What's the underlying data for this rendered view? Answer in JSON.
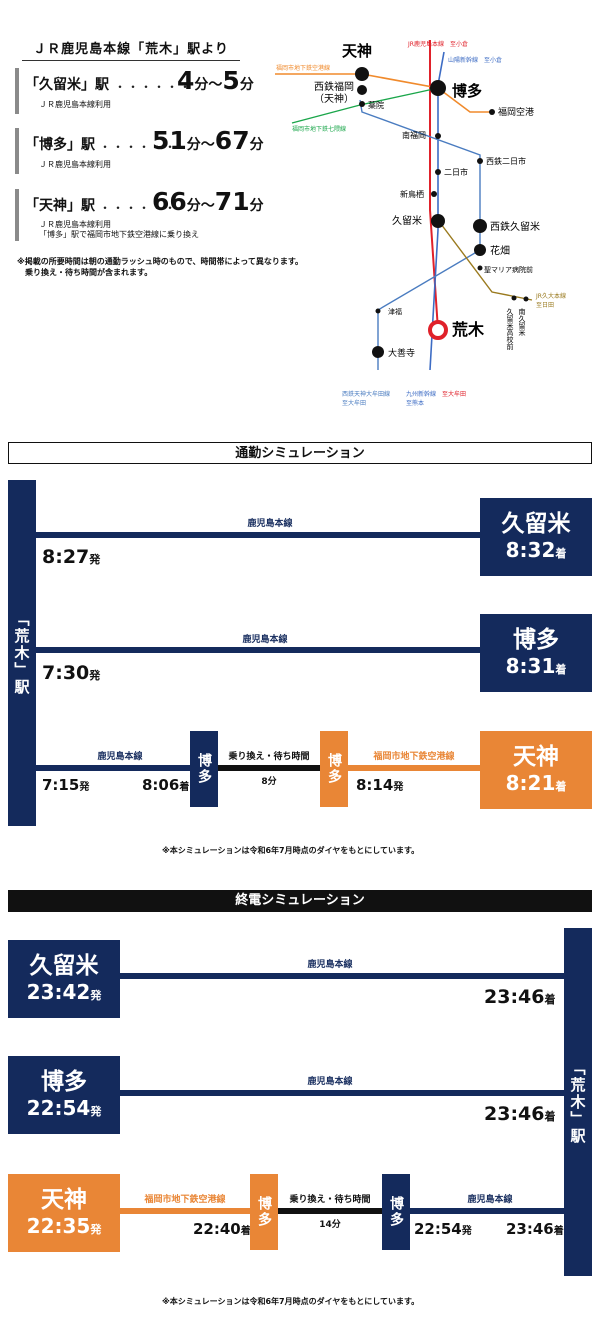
{
  "access": {
    "title": "ＪＲ鹿児島本線「荒木」駅より",
    "dots": "・・・・・・",
    "rows": [
      {
        "station": "「久留米」駅",
        "time_min": "4",
        "time_sep": "分〜",
        "time_max": "5",
        "unit": "分",
        "notes": [
          "ＪＲ鹿児島本線利用"
        ]
      },
      {
        "station": "「博多」駅",
        "time_min": "51",
        "time_sep": "分〜",
        "time_max": "67",
        "unit": "分",
        "notes": [
          "ＪＲ鹿児島本線利用"
        ]
      },
      {
        "station": "「天神」駅",
        "time_min": "66",
        "time_sep": "分〜",
        "time_max": "71",
        "unit": "分",
        "notes": [
          "ＪＲ鹿児島本線利用",
          "「博多」駅で福岡市地下鉄空港線に乗り換え"
        ]
      }
    ],
    "footnote": [
      "※掲載の所要時間は朝の通勤ラッシュ時のもので、時間帯によって異なります。",
      "乗り換え・待ち時間が含まれます。"
    ]
  },
  "map": {
    "tenjin": "天神",
    "hakata": "博多",
    "nishitetsu_fukuoka": "西鉄福岡",
    "nishitetsu_fukuoka_sub": "（天神）",
    "yakuin": "薬院",
    "fukuoka_airport": "福岡空港",
    "minamifukuoka": "南福岡",
    "futsukaichi": "二日市",
    "nishitetsu_futsukaichi": "西鉄二日市",
    "shintosu": "新鳥栖",
    "kurume": "久留米",
    "nishitetsu_kurume": "西鉄久留米",
    "hanabatake": "花畑",
    "seimaria": "聖マリア病院前",
    "araki": "荒木",
    "tsubuku": "津福",
    "daizenji": "大善寺",
    "kurume_koko": "久留米高校前",
    "minami_kurume": "南久留米",
    "lbl_kuko": "福岡市地下鉄空港線",
    "lbl_nanakuma": "福岡市地下鉄七隈線",
    "lbl_kagoshima_top": "JR鹿児島本線　至小倉",
    "lbl_sanyo": "山陽新幹線　至小倉",
    "lbl_nishitetsu_bottom": [
      "西鉄天神大牟田線",
      "至大牟田"
    ],
    "lbl_kyushu_shinkansen": [
      "九州新幹線",
      "至熊本"
    ],
    "lbl_omuta": "至大牟田",
    "lbl_kyudai": [
      "JR久大本線",
      "至日田"
    ]
  },
  "commute": {
    "heading": "通勤シミュレーション",
    "origin": "「荒木」駅",
    "routes": [
      {
        "line": "鹿児島本線",
        "depart": "8:27",
        "depart_suffix": "発",
        "dest": "久留米",
        "arrive": "8:32",
        "arrive_suffix": "着"
      },
      {
        "line": "鹿児島本線",
        "depart": "7:30",
        "depart_suffix": "発",
        "dest": "博多",
        "arrive": "8:31",
        "arrive_suffix": "着"
      },
      {
        "line": "鹿児島本線",
        "depart": "7:15",
        "depart_suffix": "発",
        "transfer_arrive": "8:06",
        "transfer_arrive_suffix": "着",
        "transfer_station": "博多",
        "transfer_label": "乗り換え・待ち時間",
        "transfer_time": "8分",
        "line2": "福岡市地下鉄空港線",
        "transfer_depart": "8:14",
        "transfer_depart_suffix": "発",
        "dest": "天神",
        "arrive": "8:21",
        "arrive_suffix": "着"
      }
    ],
    "note": "※本シミュレーションは令和6年7月時点のダイヤをもとにしています。"
  },
  "last": {
    "heading": "終電シミュレーション",
    "origin": "「荒木」駅",
    "routes": [
      {
        "line": "鹿児島本線",
        "from": "久留米",
        "depart": "23:42",
        "depart_suffix": "発",
        "arrive": "23:46",
        "arrive_suffix": "着"
      },
      {
        "line": "鹿児島本線",
        "from": "博多",
        "depart": "22:54",
        "depart_suffix": "発",
        "arrive": "23:46",
        "arrive_suffix": "着"
      },
      {
        "line": "福岡市地下鉄空港線",
        "from": "天神",
        "depart": "22:35",
        "depart_suffix": "発",
        "transfer_arrive": "22:40",
        "transfer_arrive_suffix": "着",
        "transfer_station": "博多",
        "transfer_label": "乗り換え・待ち時間",
        "transfer_time": "14分",
        "line2": "鹿児島本線",
        "transfer_depart": "22:54",
        "transfer_depart_suffix": "発",
        "arrive": "23:46",
        "arrive_suffix": "着"
      }
    ],
    "note": "※本シミュレーションは令和6年7月時点のダイヤをもとにしています。"
  },
  "colors": {
    "navy": "#142a5c",
    "orange": "#e98636",
    "jr_red": "#e0212a",
    "subway_airport": "#f08a2c",
    "subway_nanakuma": "#1aa64a",
    "nishitetsu": "#4a7cc0",
    "kyudai": "#9a7a1e"
  }
}
